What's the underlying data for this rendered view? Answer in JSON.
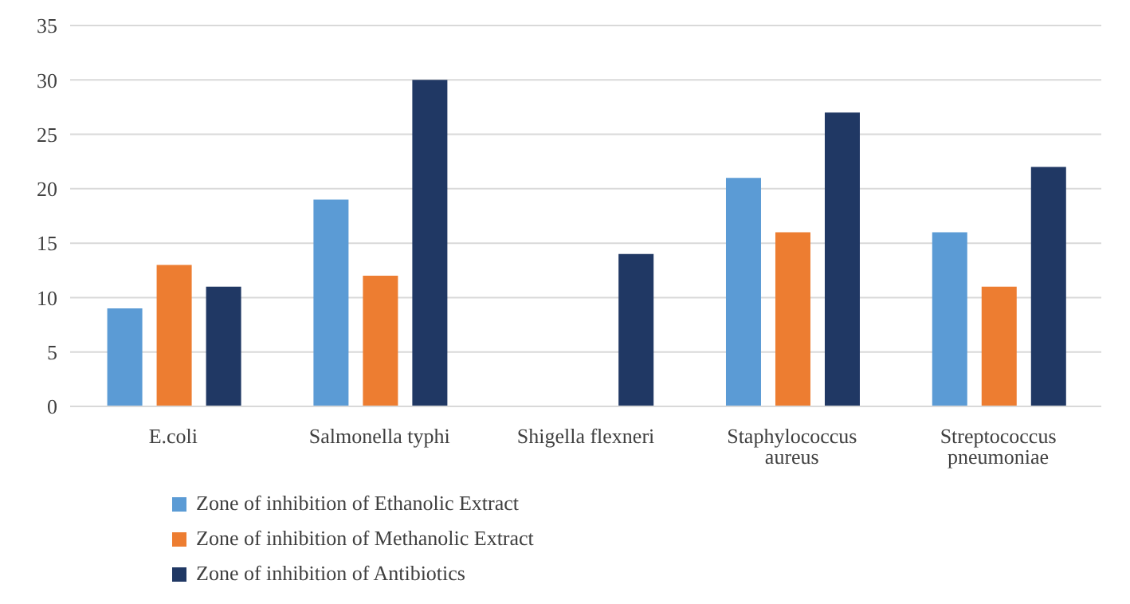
{
  "chart_data": {
    "type": "bar",
    "categories": [
      "E.coli",
      "Salmonella typhi",
      "Shigella flexneri",
      "Staphylococcus aureus",
      "Streptococcus pneumoniae"
    ],
    "series": [
      {
        "name": "Zone of inhibition of Ethanolic Extract",
        "color": "#5b9bd5",
        "values": [
          9,
          19,
          0,
          21,
          16
        ]
      },
      {
        "name": "Zone of inhibition of Methanolic Extract",
        "color": "#ed7d31",
        "values": [
          13,
          12,
          0,
          16,
          11
        ]
      },
      {
        "name": "Zone of inhibition of Antibiotics",
        "color": "#203864",
        "values": [
          11,
          30,
          14,
          27,
          22
        ]
      }
    ],
    "ylim": [
      0,
      35
    ],
    "yticks": [
      0,
      5,
      10,
      15,
      20,
      25,
      30,
      35
    ],
    "grid": "y",
    "legend": "bottom left"
  }
}
